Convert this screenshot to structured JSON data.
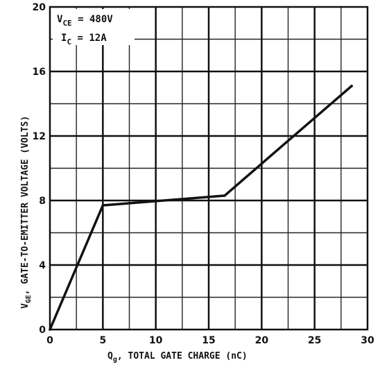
{
  "chart_data": {
    "type": "line",
    "x_label_main": "Q",
    "x_label_sub": "g",
    "x_label_rest": ",  TOTAL GATE CHARGE (nC)",
    "y_label_main": "V",
    "y_label_sub": "GE",
    "y_label_rest": ",  GATE-TO-EMITTER VOLTAGE (VOLTS)",
    "xlim": [
      0,
      30
    ],
    "ylim": [
      0,
      20
    ],
    "x_ticks": [
      0,
      5,
      10,
      15,
      20,
      25,
      30
    ],
    "y_ticks": [
      0,
      4,
      8,
      12,
      16,
      20
    ],
    "x_tick_labels": [
      "0",
      "5",
      "10",
      "15",
      "20",
      "25",
      "30"
    ],
    "y_tick_labels": [
      "0",
      "4",
      "8",
      "12",
      "16",
      "20"
    ],
    "grid": true,
    "minor_x_step": 2.5,
    "minor_y_step": 2,
    "annotations": {
      "vce_main": "V",
      "vce_sub": "CE",
      "vce_value": " = 480V",
      "ic_main": "I",
      "ic_sub": "C",
      "ic_value": " = 12A"
    },
    "series": [
      {
        "x": [
          0,
          5,
          16.5,
          28.5
        ],
        "y": [
          0,
          7.7,
          8.3,
          15.1
        ]
      }
    ]
  }
}
